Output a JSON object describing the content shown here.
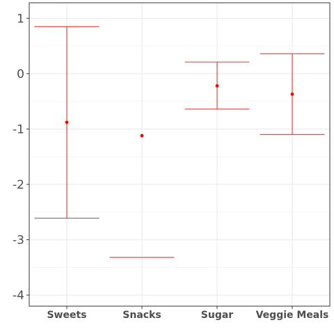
{
  "chart_data": {
    "type": "errorbar",
    "title": "",
    "xlabel": "",
    "ylabel": "",
    "categories": [
      "Sweets",
      "Snacks",
      "Sugar",
      "Veggie Meals"
    ],
    "points": [
      {
        "category": "Sweets",
        "estimate": -0.88,
        "lower": -2.61,
        "upper": 0.85
      },
      {
        "category": "Snacks",
        "estimate": -1.12,
        "lower": -3.32,
        "upper": null
      },
      {
        "category": "Sugar",
        "estimate": -0.22,
        "lower": -0.64,
        "upper": 0.21
      },
      {
        "category": "Veggie Meals",
        "estimate": -0.37,
        "lower": -1.1,
        "upper": 0.36
      }
    ],
    "ylim": [
      -4.2,
      1.28
    ],
    "yticks": [
      {
        "value": 1,
        "label": "1"
      },
      {
        "value": 0,
        "label": "0"
      },
      {
        "value": -1,
        "label": "-1"
      },
      {
        "value": -2,
        "label": "-2"
      },
      {
        "value": -3,
        "label": "-3"
      },
      {
        "value": -4,
        "label": "-4"
      }
    ],
    "grid": true,
    "colors": {
      "mark": "#ff0000",
      "line": "#f03030",
      "grid": "#ebebeb",
      "axis": "#333333"
    }
  }
}
